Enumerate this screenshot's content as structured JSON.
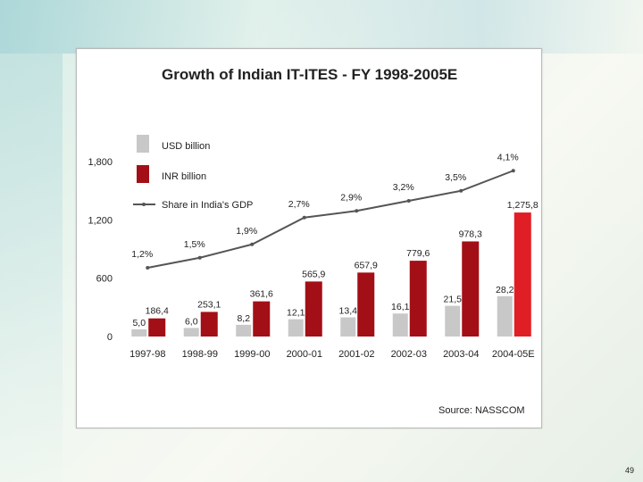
{
  "slide": {
    "page_number": "49"
  },
  "chart_data": {
    "type": "bar",
    "title": "Growth of Indian IT-ITES - FY 1998-2005E",
    "source": "Source: NASSCOM",
    "categories": [
      "1997-98",
      "1998-99",
      "1999-00",
      "2000-01",
      "2001-02",
      "2002-03",
      "2003-04",
      "2004-05E"
    ],
    "ylim": [
      0,
      1800
    ],
    "yticks": [
      {
        "value": 0,
        "label": "0"
      },
      {
        "value": 600,
        "label": "600"
      },
      {
        "value": 1200,
        "label": "1,200"
      },
      {
        "value": 1800,
        "label": "1,800"
      }
    ],
    "legend_position": "top-left",
    "series": [
      {
        "name": "USD billion",
        "type": "bar",
        "color": "#c8c8c8",
        "values": [
          5.0,
          6.0,
          8.2,
          12.1,
          13.4,
          16.1,
          21.5,
          28.2
        ],
        "labels": [
          "5,0",
          "6,0",
          "8,2",
          "12,1",
          "13,4",
          "16,1",
          "21,5",
          "28,2"
        ]
      },
      {
        "name": "INR billion",
        "type": "bar",
        "color": "#a30f16",
        "highlight_color": "#e01e25",
        "values": [
          186.4,
          253.1,
          361.6,
          565.9,
          657.9,
          779.6,
          978.3,
          1275.8
        ],
        "labels": [
          "186,4",
          "253,1",
          "361,6",
          "565,9",
          "657,9",
          "779,6",
          "978,3",
          "1,275,8"
        ]
      },
      {
        "name": "Share in India's GDP",
        "type": "line",
        "color": "#555555",
        "unit": "%",
        "values": [
          1.2,
          1.5,
          1.9,
          2.7,
          2.9,
          3.2,
          3.5,
          4.1
        ],
        "labels": [
          "1,2%",
          "1,5%",
          "1,9%",
          "2,7%",
          "2,9%",
          "3,2%",
          "3,5%",
          "4,1%"
        ]
      }
    ]
  }
}
